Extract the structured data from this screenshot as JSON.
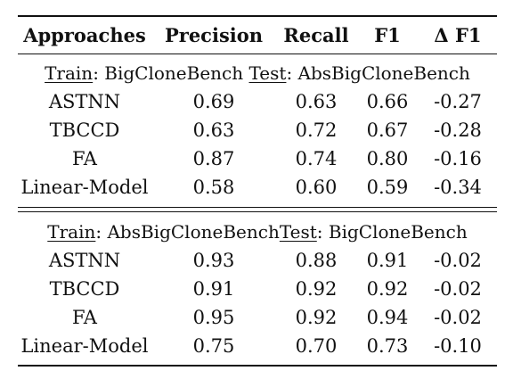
{
  "table": {
    "headers": [
      "Approaches",
      "Precision",
      "Recall",
      "F1",
      "Δ F1"
    ],
    "sections": [
      {
        "train_label": "Train",
        "train_value": ": BigCloneBench ",
        "test_label": "Test",
        "test_value": ": AbsBigCloneBench",
        "rows": [
          {
            "approach": "ASTNN",
            "precision": "0.69",
            "recall": "0.63",
            "f1": "0.66",
            "delta_f1": "-0.27"
          },
          {
            "approach": "TBCCD",
            "precision": "0.63",
            "recall": "0.72",
            "f1": "0.67",
            "delta_f1": "-0.28"
          },
          {
            "approach": "FA",
            "precision": "0.87",
            "recall": "0.74",
            "f1": "0.80",
            "delta_f1": "-0.16"
          },
          {
            "approach": "Linear-Model",
            "precision": "0.58",
            "recall": "0.60",
            "f1": "0.59",
            "delta_f1": "-0.34"
          }
        ]
      },
      {
        "train_label": "Train",
        "train_value": ": AbsBigCloneBench",
        "test_label": "Test",
        "test_value": ": BigCloneBench",
        "rows": [
          {
            "approach": "ASTNN",
            "precision": "0.93",
            "recall": "0.88",
            "f1": "0.91",
            "delta_f1": "-0.02"
          },
          {
            "approach": "TBCCD",
            "precision": "0.91",
            "recall": "0.92",
            "f1": "0.92",
            "delta_f1": "-0.02"
          },
          {
            "approach": "FA",
            "precision": "0.95",
            "recall": "0.92",
            "f1": "0.94",
            "delta_f1": "-0.02"
          },
          {
            "approach": "Linear-Model",
            "precision": "0.75",
            "recall": "0.70",
            "f1": "0.73",
            "delta_f1": "-0.10"
          }
        ]
      }
    ]
  }
}
